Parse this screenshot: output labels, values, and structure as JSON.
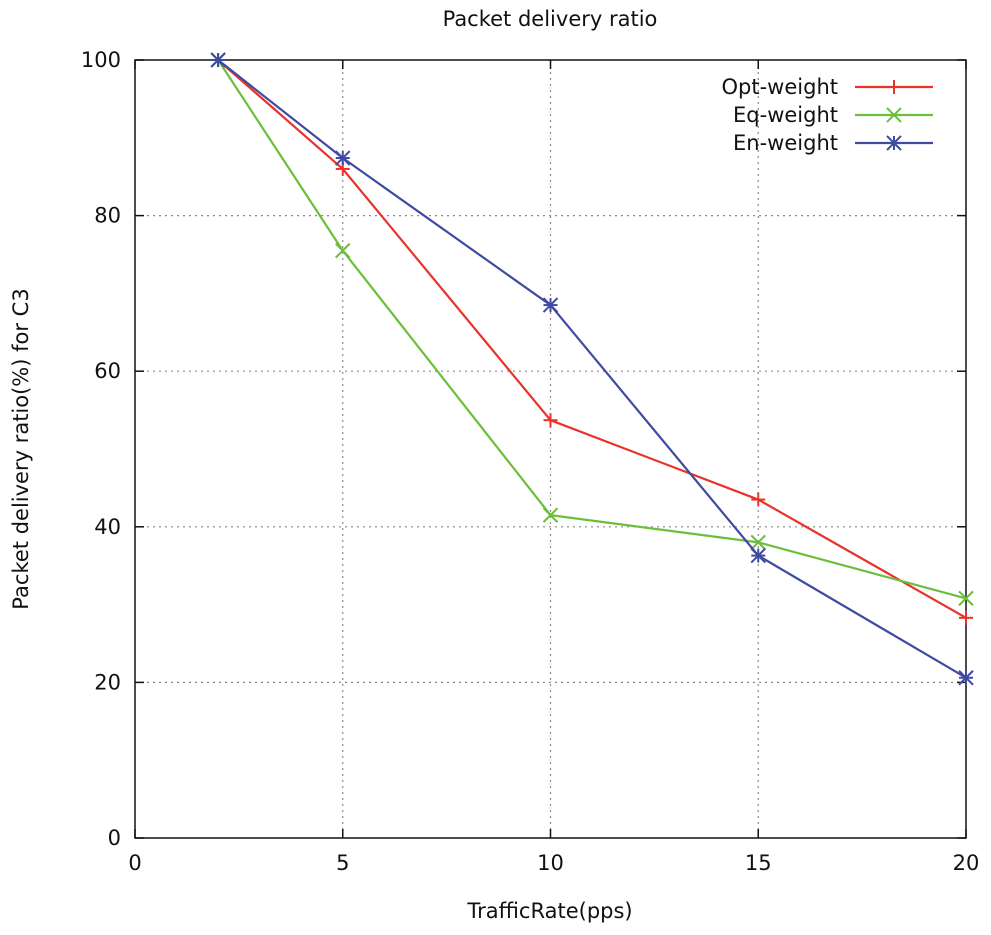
{
  "chart_data": {
    "type": "line",
    "title": "Packet delivery ratio",
    "xlabel": "TrafficRate(pps)",
    "ylabel": "Packet delivery ratio(%) for C3",
    "xlim": [
      0,
      20
    ],
    "ylim": [
      0,
      100
    ],
    "xticks": [
      0,
      5,
      10,
      15,
      20
    ],
    "yticks": [
      0,
      20,
      40,
      60,
      80,
      100
    ],
    "grid": true,
    "legend_position": "top-right",
    "series": [
      {
        "name": "Opt-weight",
        "color": "#e8332b",
        "marker": "plus",
        "x": [
          2,
          5,
          10,
          15,
          20
        ],
        "y": [
          100,
          86,
          53.7,
          43.5,
          28.3
        ]
      },
      {
        "name": "Eq-weight",
        "color": "#6cbf3a",
        "marker": "cross",
        "x": [
          2,
          5,
          10,
          15,
          20
        ],
        "y": [
          100,
          75.5,
          41.5,
          38,
          30.8
        ]
      },
      {
        "name": "En-weight",
        "color": "#3f4aa1",
        "marker": "star",
        "x": [
          2,
          5,
          10,
          15,
          20
        ],
        "y": [
          100,
          87.4,
          68.5,
          36.3,
          20.6
        ]
      }
    ]
  }
}
